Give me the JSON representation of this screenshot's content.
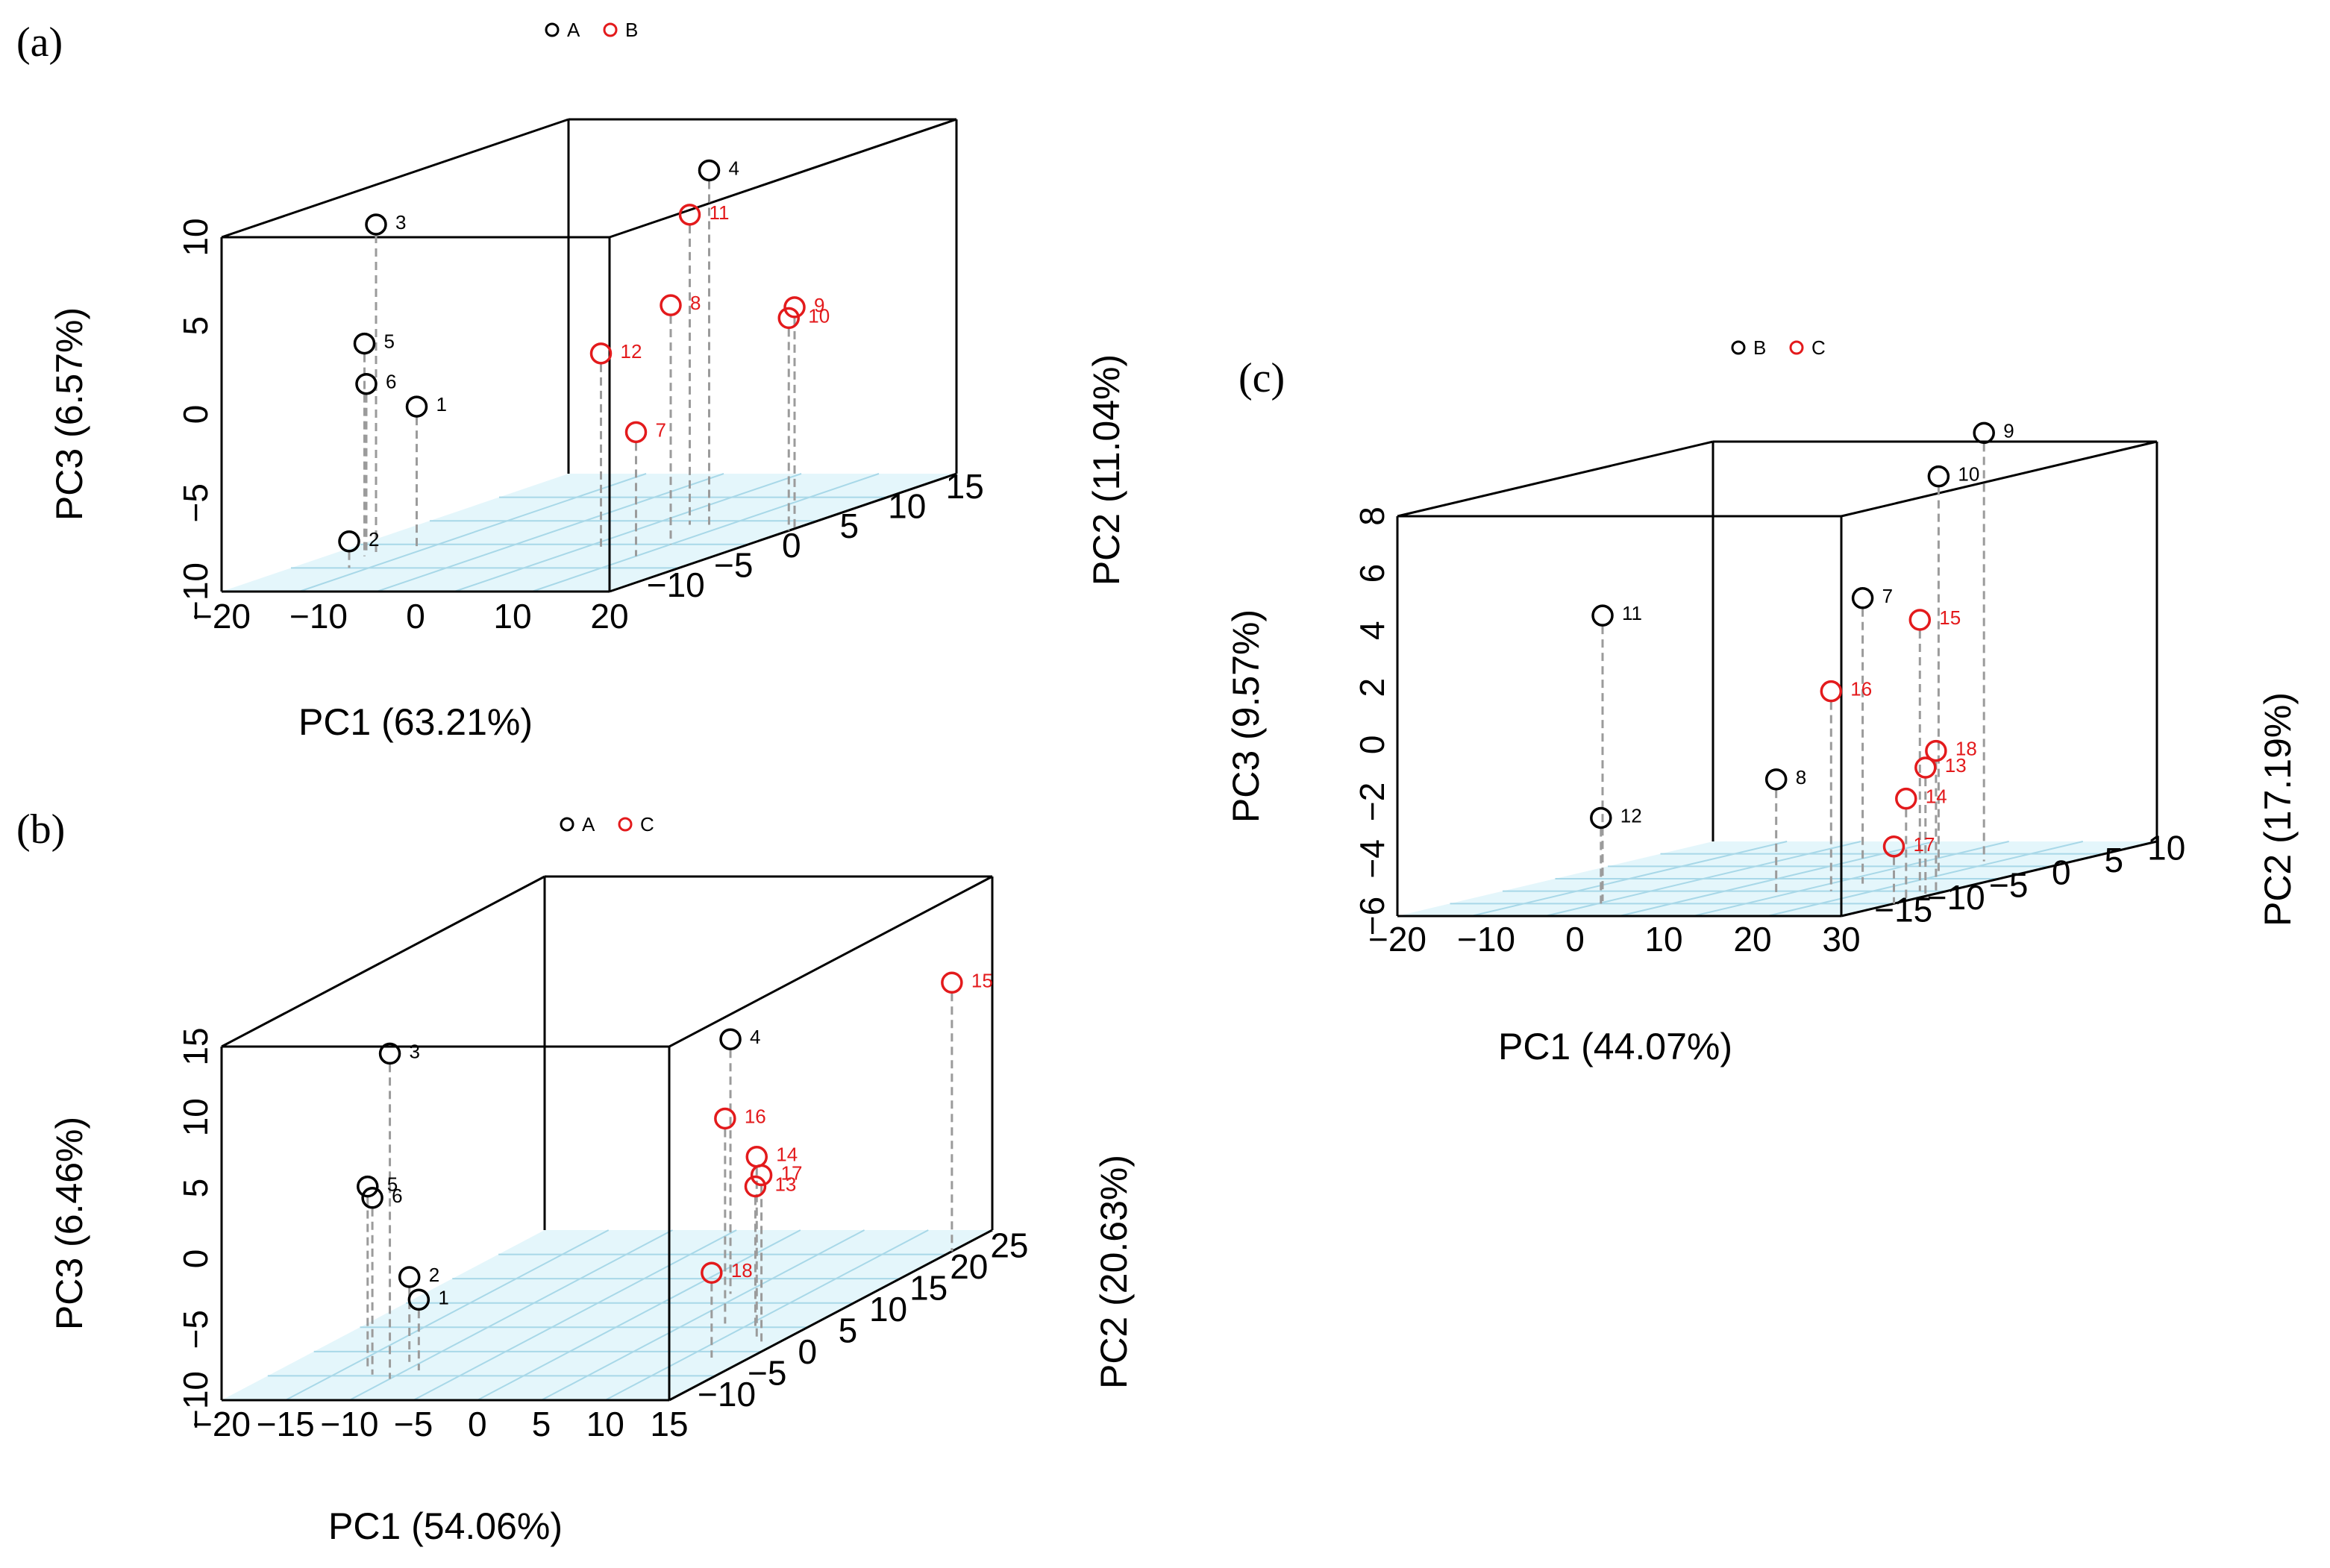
{
  "colors": {
    "group_black": "#000000",
    "group_red": "#e31a1c",
    "grid": "#a8d8e8",
    "drop_line": "#9b9b9b"
  },
  "chart_data": [
    {
      "type": "scatter",
      "subtype": "3d-scatter",
      "panel_label": "(a)",
      "legend": [
        {
          "name": "A",
          "color": "#000000"
        },
        {
          "name": "B",
          "color": "#e31a1c"
        }
      ],
      "xlabel": "PC1 (63.21%)",
      "ylabel": "PC2 (11.04%)",
      "zlabel": "PC3 (6.57%)",
      "xlim": [
        -20,
        20
      ],
      "ylim": [
        -15,
        15
      ],
      "zlim": [
        -10,
        10
      ],
      "x_ticks": [
        "−20",
        "−10",
        "0",
        "10",
        "20"
      ],
      "y_ticks": [
        "−10",
        "−5",
        "0",
        "5",
        "10",
        "15"
      ],
      "z_ticks": [
        "−10",
        "−5",
        "0",
        "5",
        "10"
      ],
      "points": [
        {
          "label": "1",
          "group": "A",
          "x": -13,
          "y": -4,
          "z": -2
        },
        {
          "label": "2",
          "group": "A",
          "x": -14,
          "y": -9,
          "z": -8.5
        },
        {
          "label": "3",
          "group": "A",
          "x": -16,
          "y": -5,
          "z": 8.5
        },
        {
          "label": "4",
          "group": "A",
          "x": 10,
          "y": 2,
          "z": 10
        },
        {
          "label": "5",
          "group": "A",
          "x": -16,
          "y": -6,
          "z": 2
        },
        {
          "label": "6",
          "group": "A",
          "x": -17,
          "y": -5,
          "z": -0.5
        },
        {
          "label": "7",
          "group": "B",
          "x": 12,
          "y": -6,
          "z": -3
        },
        {
          "label": "8",
          "group": "B",
          "x": 12,
          "y": -3,
          "z": 3.5
        },
        {
          "label": "9",
          "group": "B",
          "x": 20,
          "y": 1,
          "z": 2.5
        },
        {
          "label": "10",
          "group": "B",
          "x": 20,
          "y": 0.5,
          "z": 2
        },
        {
          "label": "11",
          "group": "B",
          "x": 8,
          "y": 2,
          "z": 7.5
        },
        {
          "label": "12",
          "group": "B",
          "x": 6,
          "y": -4,
          "z": 1
        }
      ]
    },
    {
      "type": "scatter",
      "subtype": "3d-scatter",
      "panel_label": "(b)",
      "legend": [
        {
          "name": "A",
          "color": "#000000"
        },
        {
          "name": "C",
          "color": "#e31a1c"
        }
      ],
      "xlabel": "PC1 (54.06%)",
      "ylabel": "PC2 (20.63%)",
      "zlabel": "PC3 (6.46%)",
      "xlim": [
        -20,
        15
      ],
      "ylim": [
        -15,
        25
      ],
      "zlim": [
        -10,
        15
      ],
      "x_ticks": [
        "−20",
        "−15",
        "−10",
        "−5",
        "0",
        "5",
        "10",
        "15"
      ],
      "y_ticks": [
        "−10",
        "−5",
        "0",
        "5",
        "10",
        "15",
        "20",
        "25"
      ],
      "z_ticks": [
        "−10",
        "−5",
        "0",
        "5",
        "10",
        "15"
      ],
      "points": [
        {
          "label": "1",
          "group": "A",
          "x": -9,
          "y": -8,
          "z": -5
        },
        {
          "label": "2",
          "group": "A",
          "x": -11,
          "y": -6,
          "z": -4
        },
        {
          "label": "3",
          "group": "A",
          "x": -10,
          "y": -10,
          "z": 13
        },
        {
          "label": "4",
          "group": "A",
          "x": 4,
          "y": 10,
          "z": 8
        },
        {
          "label": "5",
          "group": "A",
          "x": -13,
          "y": -8,
          "z": 3
        },
        {
          "label": "6",
          "group": "A",
          "x": -12,
          "y": -9,
          "z": 2.5
        },
        {
          "label": "13",
          "group": "C",
          "x": 11,
          "y": 2,
          "z": 0
        },
        {
          "label": "14",
          "group": "C",
          "x": 13,
          "y": -1,
          "z": 3
        },
        {
          "label": "15",
          "group": "C",
          "x": 15,
          "y": 20,
          "z": 9
        },
        {
          "label": "16",
          "group": "C",
          "x": 8,
          "y": 3,
          "z": 4.5
        },
        {
          "label": "17",
          "group": "C",
          "x": 14,
          "y": -2,
          "z": 2
        },
        {
          "label": "18",
          "group": "C",
          "x": 12,
          "y": -5,
          "z": -4
        }
      ]
    },
    {
      "type": "scatter",
      "subtype": "3d-scatter",
      "panel_label": "(c)",
      "legend": [
        {
          "name": "B",
          "color": "#000000"
        },
        {
          "name": "C",
          "color": "#e31a1c"
        }
      ],
      "xlabel": "PC1 (44.07%)",
      "ylabel": "PC2 (17.19%)",
      "zlabel": "PC3 (9.57%)",
      "xlim": [
        -20,
        30
      ],
      "ylim": [
        -20,
        10
      ],
      "zlim": [
        -6,
        8
      ],
      "x_ticks": [
        "−20",
        "−10",
        "0",
        "10",
        "20",
        "30"
      ],
      "y_ticks": [
        "−15",
        "−10",
        "−5",
        "0",
        "5",
        "10"
      ],
      "z_ticks": [
        "−6",
        "−4",
        "−2",
        "0",
        "2",
        "4",
        "6",
        "8"
      ],
      "points": [
        {
          "label": "7",
          "group": "B",
          "x": 17,
          "y": -7,
          "z": 4
        },
        {
          "label": "8",
          "group": "B",
          "x": 12,
          "y": -11,
          "z": -2
        },
        {
          "label": "9",
          "group": "B",
          "x": 20,
          "y": 2,
          "z": 9
        },
        {
          "label": "10",
          "group": "B",
          "x": 22,
          "y": -4,
          "z": 8
        },
        {
          "label": "11",
          "group": "B",
          "x": -4,
          "y": -14,
          "z": 4
        },
        {
          "label": "12",
          "group": "B",
          "x": -3,
          "y": -15,
          "z": -3
        },
        {
          "label": "13",
          "group": "C",
          "x": 30,
          "y": -12,
          "z": -1.5
        },
        {
          "label": "14",
          "group": "C",
          "x": 29,
          "y": -13,
          "z": -2.5
        },
        {
          "label": "15",
          "group": "C",
          "x": 27,
          "y": -10,
          "z": 3.5
        },
        {
          "label": "16",
          "group": "C",
          "x": 17,
          "y": -10,
          "z": 1
        },
        {
          "label": "17",
          "group": "C",
          "x": 30,
          "y": -15,
          "z": -4
        },
        {
          "label": "18",
          "group": "C",
          "x": 30,
          "y": -11,
          "z": -1
        }
      ]
    }
  ]
}
